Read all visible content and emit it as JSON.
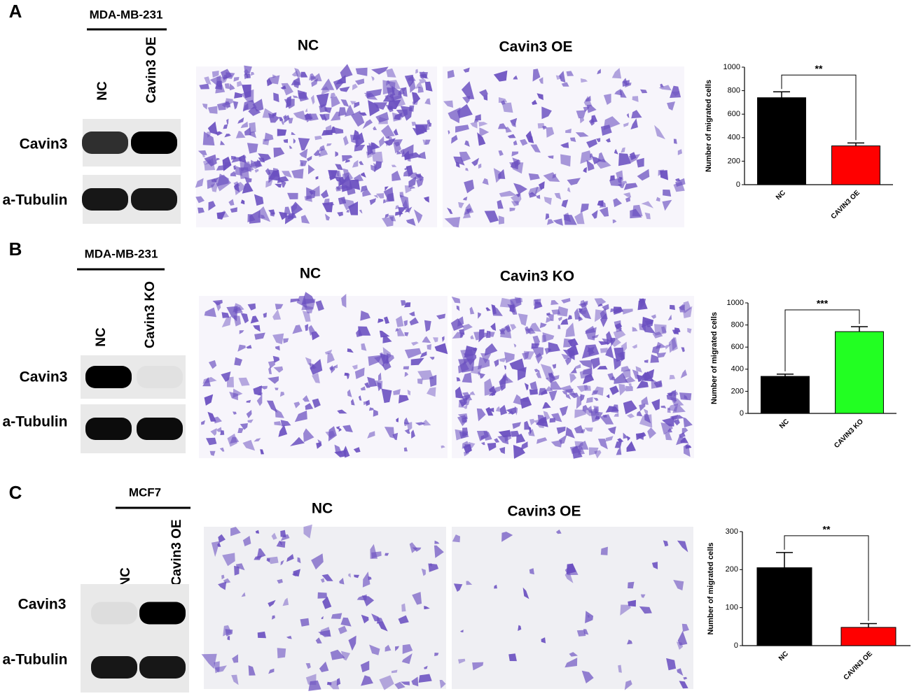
{
  "panels": [
    {
      "label": "A",
      "cell_line": "MDA-MB-231",
      "lanes": [
        "NC",
        "Cavin3  OE"
      ],
      "bands": [
        "Cavin3",
        "a-Tubulin"
      ],
      "images": [
        "NC",
        "Cavin3 OE"
      ]
    },
    {
      "label": "B",
      "cell_line": "MDA-MB-231",
      "lanes": [
        "NC",
        "Cavin3  KO"
      ],
      "bands": [
        "Cavin3",
        "a-Tubulin"
      ],
      "images": [
        "NC",
        "Cavin3 KO"
      ]
    },
    {
      "label": "C",
      "cell_line": "MCF7",
      "lanes": [
        "NC",
        "Cavin3  OE"
      ],
      "bands": [
        "Cavin3",
        "a-Tubulin"
      ],
      "images": [
        "NC",
        "Cavin3 OE"
      ]
    }
  ],
  "chart_data": [
    {
      "type": "bar",
      "ylabel": "Number of migrated cells",
      "categories": [
        "NC",
        "CAVIN3 OE"
      ],
      "values": [
        740,
        330
      ],
      "errors": [
        50,
        25
      ],
      "colors": [
        "#000000",
        "#ff0000"
      ],
      "ylim": [
        0,
        1000
      ],
      "yticks": [
        0,
        200,
        400,
        600,
        800,
        1000
      ],
      "significance": "**"
    },
    {
      "type": "bar",
      "ylabel": "Number of migrated cells",
      "categories": [
        "NC",
        "CAVIN3 KO"
      ],
      "values": [
        335,
        740
      ],
      "errors": [
        20,
        45
      ],
      "colors": [
        "#000000",
        "#22ff22"
      ],
      "ylim": [
        0,
        1000
      ],
      "yticks": [
        0,
        200,
        400,
        600,
        800,
        1000
      ],
      "significance": "***"
    },
    {
      "type": "bar",
      "ylabel": "Number of migrated cells",
      "categories": [
        "NC",
        "CAVIN3 OE"
      ],
      "values": [
        205,
        48
      ],
      "errors": [
        40,
        10
      ],
      "colors": [
        "#000000",
        "#ff0000"
      ],
      "ylim": [
        0,
        300
      ],
      "yticks": [
        0,
        100,
        200,
        300
      ],
      "significance": "**"
    }
  ]
}
